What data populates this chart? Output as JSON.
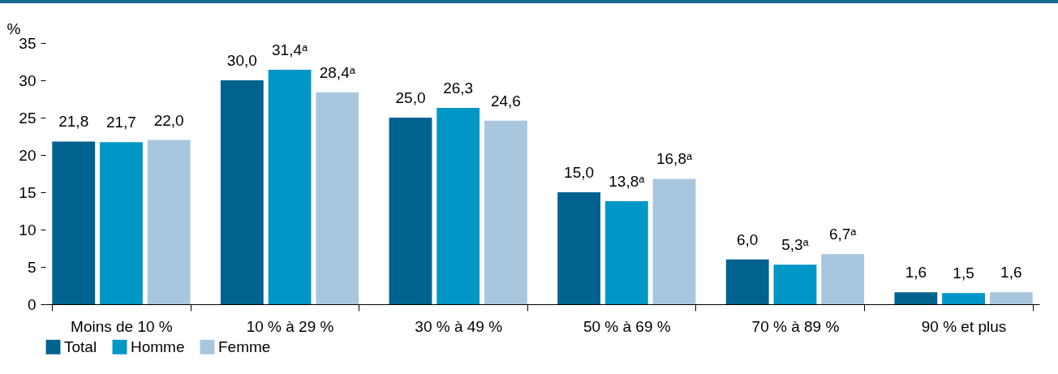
{
  "chart_data": {
    "type": "bar",
    "ylabel": "%",
    "categories": [
      "Moins de 10 %",
      "10 % à 29 %",
      "30 % à 49 %",
      "50 % à 69 %",
      "70 % à 89 %",
      "90 % et plus"
    ],
    "series": [
      {
        "name": "Total",
        "color": "#00638f",
        "values": [
          21.8,
          30.0,
          25.0,
          15.0,
          6.0,
          1.6
        ],
        "value_labels": [
          "21,8",
          "30,0",
          "25,0",
          "15,0",
          "6,0",
          "1,6"
        ]
      },
      {
        "name": "Homme",
        "color": "#0096c6",
        "values": [
          21.7,
          31.4,
          26.3,
          13.8,
          5.3,
          1.5
        ],
        "value_labels": [
          "21,7",
          "31,4ᵃ",
          "26,3",
          "13,8ᵃ",
          "5,3ᵃ",
          "1,5"
        ]
      },
      {
        "name": "Femme",
        "color": "#a9c6df",
        "values": [
          22.0,
          28.4,
          24.6,
          16.8,
          6.7,
          1.6
        ],
        "value_labels": [
          "22,0",
          "28,4ᵃ",
          "24,6",
          "16,8ᵃ",
          "6,7ᵃ",
          "1,6"
        ]
      }
    ],
    "ylim": [
      0,
      35
    ],
    "yticks": [
      0,
      5,
      10,
      15,
      20,
      25,
      30,
      35
    ],
    "grid": false,
    "legend": "bottom"
  }
}
